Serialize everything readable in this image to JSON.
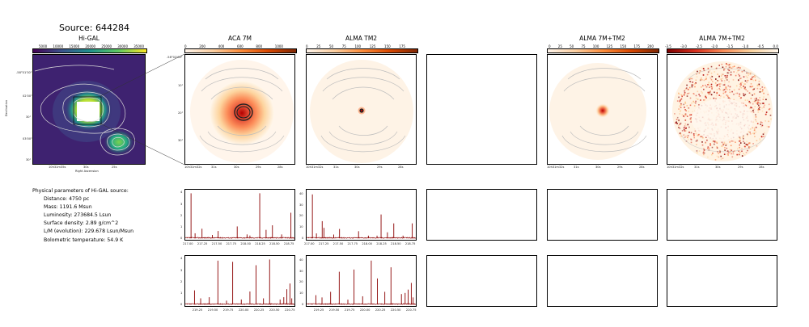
{
  "title": "Source: 644284",
  "panels": {
    "higal": {
      "label": "Hi-GAL",
      "cbar_ticks": [
        "5000",
        "10000",
        "15000",
        "20000",
        "25000",
        "30000",
        "35000"
      ],
      "yticks": [
        "-58°01'30\"",
        "02'00\"",
        "30\"",
        "03'00\"",
        "30\""
      ],
      "xticks": [
        "10h31m35s",
        "30s",
        "25s"
      ],
      "xlabel": "Right Ascension",
      "ylabel": "Declination"
    },
    "aca7m": {
      "label": "ACA 7M",
      "cbar_ticks": [
        "0",
        "200",
        "400",
        "600",
        "800",
        "1000"
      ],
      "yticks": [
        "-58°02'00\"",
        "10\"",
        "20\"",
        "30\""
      ],
      "xticks": [
        "10h31m32s",
        "31s",
        "30s",
        "29s",
        "28s"
      ]
    },
    "almatm2": {
      "label": "ALMA TM2",
      "cbar_ticks": [
        "0",
        "25",
        "50",
        "75",
        "100",
        "125",
        "150",
        "175"
      ],
      "xticks": [
        "10h31m32s",
        "31s",
        "30s",
        "29s",
        "28s"
      ]
    },
    "alma7mtm2": {
      "label": "ALMA 7M+TM2",
      "cbar_ticks": [
        "0",
        "25",
        "50",
        "75",
        "100",
        "125",
        "150",
        "175",
        "200"
      ],
      "xticks": [
        "10h31m32s",
        "31s",
        "30s",
        "29s",
        "28s"
      ]
    },
    "alma7mtm2_log": {
      "label": "ALMA 7M+TM2",
      "cbar_ticks": [
        "-3.5",
        "-3.0",
        "-2.5",
        "-2.0",
        "-1.5",
        "-1.0",
        "-0.5",
        "0.0"
      ],
      "xticks": [
        "10h31m32s",
        "31s",
        "30s",
        "29s",
        "28s"
      ]
    }
  },
  "params": {
    "header": "Physical parameters of Hi-GAL source:",
    "rows": [
      "Distance: 4750 pc",
      "Mass: 1191.6 Msun",
      "Luminosity: 273684.5 Lsun",
      "Surface density: 2.89 g/cm^2",
      "L/M (evolution): 229.678 Lsun/Msun",
      "Bolometric temperature: 54.9 K"
    ]
  },
  "spectra": {
    "spw1": {
      "xticks": [
        "217.00",
        "217.25",
        "217.50",
        "217.75",
        "218.00",
        "218.25",
        "218.50",
        "218.75"
      ],
      "xrange": [
        216.93,
        218.85
      ],
      "aca_yticks": [
        "0",
        "1",
        "2",
        "3",
        "4"
      ],
      "aca_ymax": 4.1,
      "tm2_yticks": [
        "0",
        "10",
        "20",
        "30",
        "40"
      ],
      "tm2_ymax": 42,
      "aca_lines": [
        [
          217.03,
          4.0
        ],
        [
          217.1,
          0.5
        ],
        [
          217.22,
          0.9
        ],
        [
          217.4,
          0.35
        ],
        [
          217.5,
          0.7
        ],
        [
          217.83,
          1.1
        ],
        [
          218.0,
          0.4
        ],
        [
          218.05,
          0.3
        ],
        [
          218.22,
          4.0
        ],
        [
          218.33,
          0.8
        ],
        [
          218.44,
          1.2
        ],
        [
          218.6,
          0.4
        ],
        [
          218.76,
          2.3
        ]
      ],
      "tm2_lines": [
        [
          217.03,
          40
        ],
        [
          217.1,
          5
        ],
        [
          217.2,
          16
        ],
        [
          217.23,
          10
        ],
        [
          217.4,
          4
        ],
        [
          217.5,
          9
        ],
        [
          217.83,
          7
        ],
        [
          218.0,
          3
        ],
        [
          218.15,
          3
        ],
        [
          218.22,
          22
        ],
        [
          218.33,
          6
        ],
        [
          218.44,
          14
        ],
        [
          218.6,
          3
        ],
        [
          218.76,
          14
        ]
      ]
    },
    "spw2": {
      "xticks": [
        "219.25",
        "219.50",
        "219.75",
        "220.00",
        "220.25",
        "220.50",
        "220.75"
      ],
      "xrange": [
        219.03,
        220.83
      ],
      "aca_yticks": [
        "0",
        "1",
        "2",
        "3",
        "4"
      ],
      "aca_ymax": 4.1,
      "tm2_yticks": [
        "0",
        "10",
        "20",
        "30",
        "40"
      ],
      "tm2_ymax": 42,
      "aca_lines": [
        [
          219.18,
          1.3
        ],
        [
          219.28,
          0.6
        ],
        [
          219.42,
          0.7
        ],
        [
          219.56,
          3.9
        ],
        [
          219.7,
          0.4
        ],
        [
          219.8,
          3.8
        ],
        [
          219.94,
          0.5
        ],
        [
          220.08,
          1.2
        ],
        [
          220.18,
          3.5
        ],
        [
          220.3,
          0.6
        ],
        [
          220.4,
          4.0
        ],
        [
          220.57,
          0.5
        ],
        [
          220.63,
          0.7
        ],
        [
          220.68,
          1.4
        ],
        [
          220.73,
          1.9
        ],
        [
          220.76,
          0.6
        ]
      ],
      "tm2_lines": [
        [
          219.18,
          9
        ],
        [
          219.28,
          7
        ],
        [
          219.42,
          12
        ],
        [
          219.56,
          30
        ],
        [
          219.7,
          5
        ],
        [
          219.8,
          32
        ],
        [
          219.94,
          8
        ],
        [
          220.08,
          40
        ],
        [
          220.18,
          24
        ],
        [
          220.3,
          12
        ],
        [
          220.4,
          34
        ],
        [
          220.57,
          10
        ],
        [
          220.63,
          11
        ],
        [
          220.68,
          14
        ],
        [
          220.73,
          20
        ],
        [
          220.76,
          7
        ]
      ]
    }
  },
  "colors": {
    "spectrum": "#8b0000",
    "contour": "#bdbdbd",
    "accent": "#1a1a1a"
  }
}
